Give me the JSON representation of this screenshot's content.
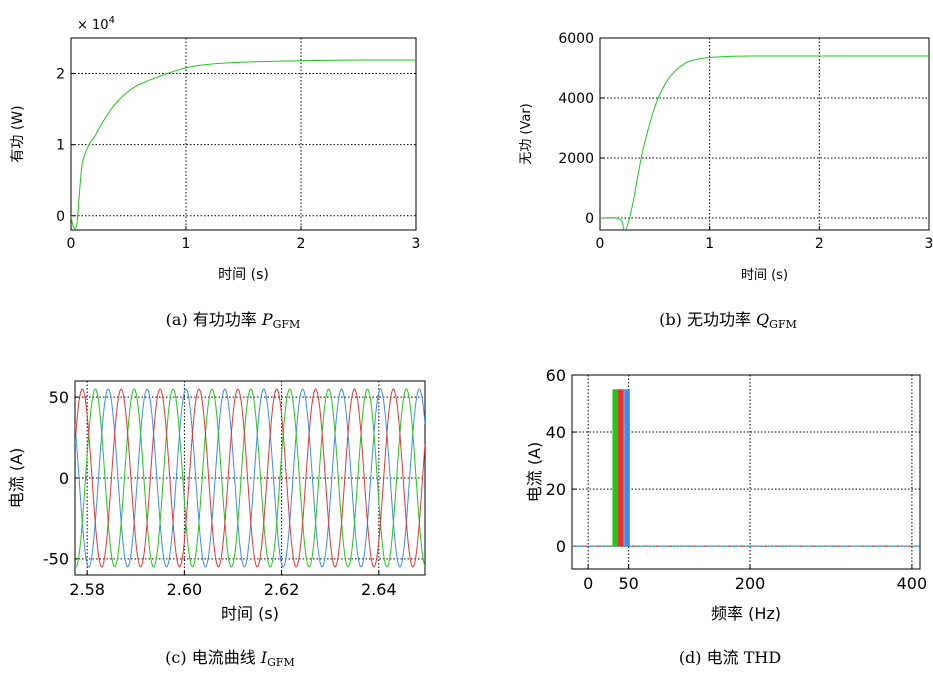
{
  "chart_data": [
    {
      "id": "a",
      "type": "line",
      "caption_prefix": "(a)  有功功率 ",
      "caption_symbol": "P",
      "caption_sub": "GFM",
      "xlabel": "时间 (s)",
      "ylabel": "有功 (W)",
      "multiplier": "× 10",
      "multiplier_exp": "4",
      "xlim": [
        0,
        3
      ],
      "ylim": [
        -0.2,
        2.5
      ],
      "xticks": [
        0,
        1,
        2,
        3
      ],
      "xtick_labels": [
        "0",
        "1",
        "2",
        "3"
      ],
      "yticks": [
        0,
        1,
        2
      ],
      "ytick_labels": [
        "0",
        "1",
        "2"
      ],
      "grid": true,
      "series": [
        {
          "color": "#22c71a",
          "x": [
            0,
            0.02,
            0.05,
            0.08,
            0.1,
            0.15,
            0.2,
            0.3,
            0.4,
            0.5,
            0.6,
            0.8,
            1.0,
            1.2,
            1.5,
            2.0,
            2.5,
            3.0
          ],
          "y": [
            0,
            -0.15,
            -0.12,
            0.45,
            0.75,
            0.98,
            1.1,
            1.38,
            1.6,
            1.75,
            1.85,
            1.98,
            2.08,
            2.13,
            2.16,
            2.18,
            2.19,
            2.19
          ]
        }
      ]
    },
    {
      "id": "b",
      "type": "line",
      "caption_prefix": "(b)  无功功率 ",
      "caption_symbol": "Q",
      "caption_sub": "GFM",
      "xlabel": "时间 (s)",
      "ylabel": "无功 (Var)",
      "xlim": [
        0,
        3
      ],
      "ylim": [
        -400,
        6000
      ],
      "xticks": [
        0,
        1,
        2,
        3
      ],
      "xtick_labels": [
        "0",
        "1",
        "2",
        "3"
      ],
      "yticks": [
        0,
        2000,
        4000,
        6000
      ],
      "ytick_labels": [
        "0",
        "2000",
        "4000",
        "6000"
      ],
      "grid": true,
      "series": [
        {
          "color": "#22c71a",
          "x": [
            0,
            0.15,
            0.2,
            0.22,
            0.25,
            0.3,
            0.35,
            0.4,
            0.5,
            0.6,
            0.7,
            0.8,
            0.9,
            1.0,
            1.2,
            1.5,
            2.0,
            3.0
          ],
          "y": [
            0,
            0,
            -120,
            -380,
            -250,
            500,
            1500,
            2400,
            3700,
            4500,
            4950,
            5200,
            5300,
            5350,
            5390,
            5400,
            5400,
            5400
          ]
        }
      ]
    },
    {
      "id": "c",
      "type": "line",
      "caption_prefix": "(c)  电流曲线 ",
      "caption_symbol": "I",
      "caption_sub": "GFM",
      "xlabel": "时间 (s)",
      "ylabel": "电流 (A)",
      "xlim": [
        2.5775,
        2.6495
      ],
      "ylim": [
        -60,
        60
      ],
      "xticks": [
        2.58,
        2.6,
        2.62,
        2.64
      ],
      "xtick_labels": [
        "2.58",
        "2.60",
        "2.62",
        "2.64"
      ],
      "yticks": [
        -50,
        0,
        50
      ],
      "ytick_labels": [
        "-50",
        "0",
        "50"
      ],
      "grid": true,
      "series": [
        {
          "color": "#3d8ee8",
          "amplitude": 55,
          "frequency_hz": 125,
          "phase_deg": 75
        },
        {
          "color": "#22c71a",
          "amplitude": 55,
          "frequency_hz": 125,
          "phase_deg": 195
        },
        {
          "color": "#e63434",
          "amplitude": 55,
          "frequency_hz": 125,
          "phase_deg": -45
        }
      ]
    },
    {
      "id": "d",
      "type": "bar",
      "caption_prefix": "(d)  电流 THD",
      "caption_symbol": "",
      "caption_sub": "",
      "xlabel": "频率 (Hz)",
      "ylabel": "电流 (A)",
      "xlim": [
        -20,
        410
      ],
      "ylim": [
        -8,
        60
      ],
      "xticks": [
        0,
        50,
        200,
        400
      ],
      "xtick_labels": [
        "0",
        "50",
        "200",
        "400"
      ],
      "yticks": [
        0,
        20,
        40,
        60
      ],
      "ytick_labels": [
        "0",
        "20",
        "40",
        "60"
      ],
      "grid": true,
      "series": [
        {
          "color": "#22c71a",
          "x": 33,
          "width": 6,
          "value": 55
        },
        {
          "color": "#e63434",
          "x": 40,
          "width": 8,
          "value": 55
        },
        {
          "color": "#3d8ee8",
          "x": 48,
          "width": 7,
          "value": 55
        }
      ]
    }
  ]
}
